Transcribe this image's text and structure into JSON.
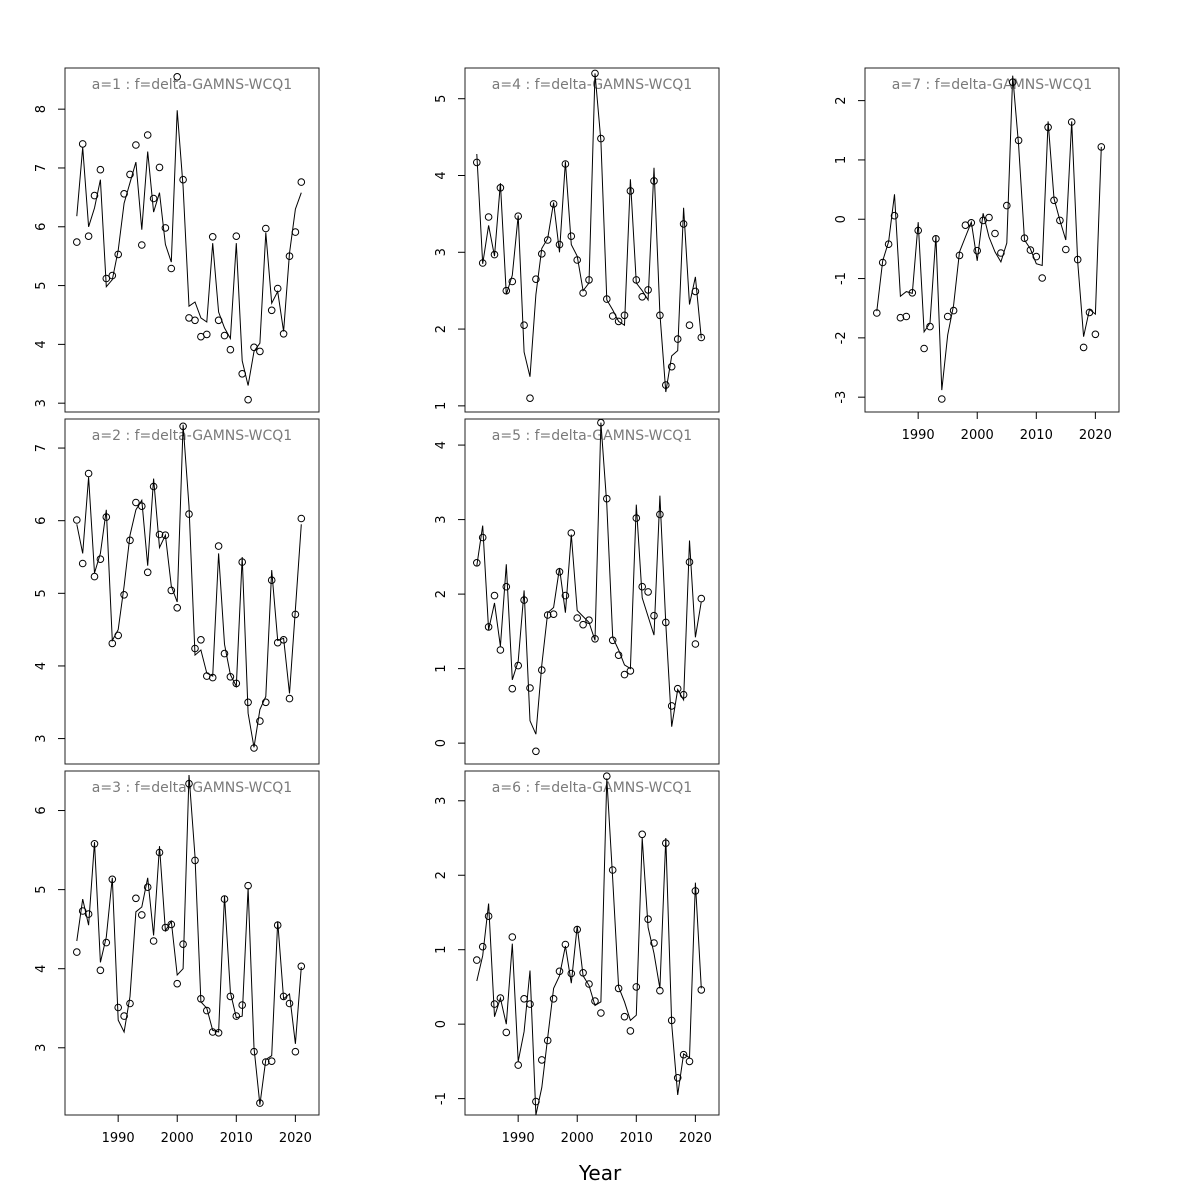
{
  "figure": {
    "xlabel": "Year"
  },
  "chart_data": [
    {
      "type": "line",
      "title": "a=1  :  f=delta-GAMNS-WCQ1",
      "xlim": [
        1981,
        2024
      ],
      "ylim": [
        2.85,
        8.7
      ],
      "yticks": [
        3,
        4,
        5,
        6,
        7,
        8
      ],
      "xticks": [],
      "x": [
        1983,
        1984,
        1985,
        1986,
        1987,
        1988,
        1989,
        1990,
        1991,
        1992,
        1993,
        1994,
        1995,
        1996,
        1997,
        1998,
        1999,
        2000,
        2001,
        2002,
        2003,
        2004,
        2005,
        2006,
        2007,
        2008,
        2009,
        2010,
        2011,
        2012,
        2013,
        2014,
        2015,
        2016,
        2017,
        2018,
        2019,
        2020,
        2021
      ],
      "series": [
        {
          "kind": "points",
          "values": [
            5.74,
            7.41,
            5.84,
            6.53,
            6.97,
            5.12,
            5.17,
            5.53,
            6.56,
            6.89,
            7.39,
            5.69,
            7.56,
            6.48,
            7.01,
            5.98,
            5.29,
            8.55,
            6.8,
            4.45,
            4.41,
            4.13,
            4.17,
            5.83,
            4.41,
            4.15,
            3.91,
            5.84,
            3.5,
            3.06,
            3.95,
            3.88,
            5.97,
            4.58,
            4.95,
            4.18,
            5.5,
            5.91,
            6.76
          ]
        },
        {
          "kind": "line",
          "values": [
            6.18,
            7.35,
            6.0,
            6.32,
            6.8,
            4.98,
            5.1,
            5.6,
            6.4,
            6.75,
            7.1,
            5.95,
            7.28,
            6.25,
            6.58,
            5.7,
            5.4,
            7.98,
            6.68,
            4.65,
            4.72,
            4.45,
            4.38,
            5.72,
            4.55,
            4.28,
            4.1,
            5.72,
            3.72,
            3.3,
            3.88,
            4.02,
            5.9,
            4.7,
            4.9,
            4.22,
            5.55,
            6.3,
            6.58
          ]
        }
      ]
    },
    {
      "type": "line",
      "title": "a=2  :  f=delta-GAMNS-WCQ1",
      "xlim": [
        1981,
        2024
      ],
      "ylim": [
        2.65,
        7.4
      ],
      "yticks": [
        3,
        4,
        5,
        6,
        7
      ],
      "xticks": [],
      "x": [
        1983,
        1984,
        1985,
        1986,
        1987,
        1988,
        1989,
        1990,
        1991,
        1992,
        1993,
        1994,
        1995,
        1996,
        1997,
        1998,
        1999,
        2000,
        2001,
        2002,
        2003,
        2004,
        2005,
        2006,
        2007,
        2008,
        2009,
        2010,
        2011,
        2012,
        2013,
        2014,
        2015,
        2016,
        2017,
        2018,
        2019,
        2020,
        2021
      ],
      "series": [
        {
          "kind": "points",
          "values": [
            6.01,
            5.41,
            6.65,
            5.23,
            5.47,
            6.05,
            4.31,
            4.42,
            4.98,
            5.73,
            6.25,
            6.2,
            5.29,
            6.47,
            5.81,
            5.8,
            5.04,
            4.8,
            7.3,
            6.09,
            4.24,
            4.36,
            3.86,
            3.84,
            5.65,
            4.17,
            3.85,
            3.76,
            5.43,
            3.5,
            2.87,
            3.24,
            3.5,
            5.18,
            4.32,
            4.36,
            3.55,
            4.71,
            6.03
          ]
        },
        {
          "kind": "line",
          "values": [
            5.95,
            5.55,
            6.6,
            5.28,
            5.55,
            6.15,
            4.35,
            4.5,
            5.1,
            5.8,
            6.15,
            6.28,
            5.38,
            6.58,
            5.63,
            5.8,
            5.1,
            4.88,
            7.32,
            6.2,
            4.15,
            4.22,
            3.9,
            3.86,
            5.55,
            4.3,
            3.88,
            3.72,
            5.5,
            3.35,
            2.88,
            3.4,
            3.58,
            5.32,
            4.35,
            4.38,
            3.62,
            4.78,
            5.95
          ]
        }
      ]
    },
    {
      "type": "line",
      "title": "a=3  :  f=delta-GAMNS-WCQ1",
      "xlim": [
        1981,
        2024
      ],
      "ylim": [
        2.15,
        6.5
      ],
      "yticks": [
        3,
        4,
        5,
        6
      ],
      "xticks": [
        1990,
        2000,
        2010,
        2020
      ],
      "x": [
        1983,
        1984,
        1985,
        1986,
        1987,
        1988,
        1989,
        1990,
        1991,
        1992,
        1993,
        1994,
        1995,
        1996,
        1997,
        1998,
        1999,
        2000,
        2001,
        2002,
        2003,
        2004,
        2005,
        2006,
        2007,
        2008,
        2009,
        2010,
        2011,
        2012,
        2013,
        2014,
        2015,
        2016,
        2017,
        2018,
        2019,
        2020,
        2021
      ],
      "series": [
        {
          "kind": "points",
          "values": [
            4.21,
            4.73,
            4.69,
            5.58,
            3.98,
            4.33,
            5.13,
            3.51,
            3.4,
            3.56,
            4.89,
            4.68,
            5.03,
            4.35,
            5.47,
            4.52,
            4.56,
            3.81,
            4.31,
            6.34,
            5.37,
            3.62,
            3.47,
            3.2,
            3.19,
            4.88,
            3.65,
            3.4,
            3.54,
            5.05,
            2.95,
            2.3,
            2.82,
            2.83,
            4.55,
            3.65,
            3.56,
            2.95,
            4.03
          ]
        },
        {
          "kind": "line",
          "values": [
            4.35,
            4.88,
            4.55,
            5.6,
            4.08,
            4.4,
            5.15,
            3.35,
            3.2,
            3.65,
            4.72,
            4.78,
            5.15,
            4.42,
            5.55,
            4.48,
            4.6,
            3.92,
            4.0,
            6.45,
            5.42,
            3.58,
            3.5,
            3.22,
            3.2,
            4.92,
            3.7,
            3.38,
            3.4,
            5.02,
            3.0,
            2.28,
            2.85,
            2.9,
            4.6,
            3.62,
            3.68,
            3.05,
            4.02
          ]
        }
      ]
    },
    {
      "type": "line",
      "title": "a=4  :  f=delta-GAMNS-WCQ1",
      "xlim": [
        1981,
        2024
      ],
      "ylim": [
        0.92,
        5.4
      ],
      "yticks": [
        1,
        2,
        3,
        4,
        5
      ],
      "xticks": [],
      "x": [
        1983,
        1984,
        1985,
        1986,
        1987,
        1988,
        1989,
        1990,
        1991,
        1992,
        1993,
        1994,
        1995,
        1996,
        1997,
        1998,
        1999,
        2000,
        2001,
        2002,
        2003,
        2004,
        2005,
        2006,
        2007,
        2008,
        2009,
        2010,
        2011,
        2012,
        2013,
        2014,
        2015,
        2016,
        2017,
        2018,
        2019,
        2020,
        2021
      ],
      "series": [
        {
          "kind": "points",
          "values": [
            4.17,
            2.86,
            3.46,
            2.97,
            3.84,
            2.5,
            2.62,
            3.47,
            2.05,
            1.1,
            2.65,
            2.98,
            3.16,
            3.63,
            3.1,
            4.15,
            3.21,
            2.9,
            2.47,
            2.64,
            5.33,
            4.48,
            2.39,
            2.17,
            2.1,
            2.18,
            3.8,
            2.64,
            2.42,
            2.51,
            3.93,
            2.18,
            1.27,
            1.51,
            1.87,
            3.37,
            2.05,
            2.49,
            1.89
          ]
        },
        {
          "kind": "line",
          "values": [
            4.28,
            2.85,
            3.35,
            2.95,
            3.9,
            2.45,
            2.7,
            3.48,
            1.7,
            1.38,
            2.45,
            3.05,
            3.18,
            3.65,
            3.0,
            4.18,
            3.1,
            2.95,
            2.5,
            2.6,
            5.33,
            4.45,
            2.38,
            2.25,
            2.1,
            2.05,
            3.95,
            2.6,
            2.5,
            2.38,
            4.1,
            2.2,
            1.18,
            1.65,
            1.72,
            3.58,
            2.32,
            2.68,
            1.88
          ]
        }
      ]
    },
    {
      "type": "line",
      "title": "a=5  :  f=delta-GAMNS-WCQ1",
      "xlim": [
        1981,
        2024
      ],
      "ylim": [
        -0.28,
        4.35
      ],
      "yticks": [
        0,
        1,
        2,
        3,
        4
      ],
      "xticks": [],
      "x": [
        1983,
        1984,
        1985,
        1986,
        1987,
        1988,
        1989,
        1990,
        1991,
        1992,
        1993,
        1994,
        1995,
        1996,
        1997,
        1998,
        1999,
        2000,
        2001,
        2002,
        2003,
        2004,
        2005,
        2006,
        2007,
        2008,
        2009,
        2010,
        2011,
        2012,
        2013,
        2014,
        2015,
        2016,
        2017,
        2018,
        2019,
        2020,
        2021
      ],
      "series": [
        {
          "kind": "points",
          "values": [
            2.42,
            2.76,
            1.56,
            1.98,
            1.25,
            2.1,
            0.73,
            1.04,
            1.92,
            0.74,
            -0.11,
            0.98,
            1.72,
            1.73,
            2.3,
            1.98,
            2.82,
            1.68,
            1.59,
            1.65,
            1.4,
            4.3,
            3.28,
            1.38,
            1.18,
            0.92,
            0.97,
            3.02,
            2.1,
            2.03,
            1.71,
            3.07,
            1.62,
            0.5,
            0.73,
            0.65,
            2.43,
            1.33,
            1.94
          ]
        },
        {
          "kind": "line",
          "values": [
            2.38,
            2.92,
            1.52,
            1.88,
            1.3,
            2.4,
            0.85,
            1.1,
            2.05,
            0.3,
            0.12,
            1.05,
            1.75,
            1.82,
            2.35,
            1.75,
            2.8,
            1.78,
            1.7,
            1.62,
            1.38,
            4.3,
            3.2,
            1.42,
            1.25,
            1.05,
            1.0,
            3.2,
            1.95,
            1.7,
            1.45,
            3.32,
            1.6,
            0.22,
            0.72,
            0.58,
            2.72,
            1.42,
            1.9
          ]
        }
      ]
    },
    {
      "type": "line",
      "title": "a=6  :  f=delta-GAMNS-WCQ1",
      "xlim": [
        1981,
        2024
      ],
      "ylim": [
        -1.22,
        3.4
      ],
      "yticks": [
        -1,
        0,
        1,
        2,
        3
      ],
      "xticks": [
        1990,
        2000,
        2010,
        2020
      ],
      "x": [
        1983,
        1984,
        1985,
        1986,
        1987,
        1988,
        1989,
        1990,
        1991,
        1992,
        1993,
        1994,
        1995,
        1996,
        1997,
        1998,
        1999,
        2000,
        2001,
        2002,
        2003,
        2004,
        2005,
        2006,
        2007,
        2008,
        2009,
        2010,
        2011,
        2012,
        2013,
        2014,
        2015,
        2016,
        2017,
        2018,
        2019,
        2020,
        2021
      ],
      "series": [
        {
          "kind": "points",
          "values": [
            0.86,
            1.04,
            1.45,
            0.27,
            0.35,
            -0.11,
            1.17,
            -0.55,
            0.34,
            0.27,
            -1.04,
            -0.48,
            -0.22,
            0.34,
            0.71,
            1.07,
            0.68,
            1.27,
            0.69,
            0.54,
            0.31,
            0.15,
            3.33,
            2.07,
            0.48,
            0.1,
            -0.09,
            0.5,
            2.55,
            1.41,
            1.09,
            0.45,
            2.43,
            0.05,
            -0.72,
            -0.41,
            -0.5,
            1.79,
            0.46
          ]
        },
        {
          "kind": "line",
          "values": [
            0.58,
            0.92,
            1.62,
            0.1,
            0.35,
            0.0,
            1.08,
            -0.5,
            -0.1,
            0.72,
            -1.22,
            -0.85,
            -0.18,
            0.48,
            0.65,
            1.05,
            0.55,
            1.32,
            0.65,
            0.52,
            0.25,
            0.3,
            3.3,
            1.95,
            0.5,
            0.3,
            0.05,
            0.12,
            2.5,
            1.3,
            0.95,
            0.48,
            2.5,
            0.0,
            -0.95,
            -0.4,
            -0.45,
            1.9,
            0.48
          ]
        }
      ]
    },
    {
      "type": "line",
      "title": "a=7  :  f=delta-GAMNS-WCQ1",
      "xlim": [
        1981,
        2024
      ],
      "ylim": [
        -3.25,
        2.55
      ],
      "yticks": [
        -3,
        -2,
        -1,
        0,
        1,
        2
      ],
      "xticks": [
        1990,
        2000,
        2010,
        2020
      ],
      "x": [
        1983,
        1984,
        1985,
        1986,
        1987,
        1988,
        1989,
        1990,
        1991,
        1992,
        1993,
        1994,
        1995,
        1996,
        1997,
        1998,
        1999,
        2000,
        2001,
        2002,
        2003,
        2004,
        2005,
        2006,
        2007,
        2008,
        2009,
        2010,
        2011,
        2012,
        2013,
        2014,
        2015,
        2016,
        2017,
        2018,
        2019,
        2020,
        2021
      ],
      "series": [
        {
          "kind": "points",
          "values": [
            -1.58,
            -0.73,
            -0.42,
            0.06,
            -1.66,
            -1.64,
            -1.24,
            -0.19,
            -2.18,
            -1.81,
            -0.33,
            -3.03,
            -1.64,
            -1.54,
            -0.61,
            -0.1,
            -0.06,
            -0.53,
            -0.02,
            0.03,
            -0.24,
            -0.57,
            0.23,
            2.31,
            1.33,
            -0.32,
            -0.52,
            -0.63,
            -0.99,
            1.55,
            0.32,
            -0.02,
            -0.51,
            1.64,
            -0.68,
            -2.16,
            -1.57,
            -1.94,
            1.22
          ]
        },
        {
          "kind": "line",
          "values": [
            -1.55,
            -0.7,
            -0.38,
            0.42,
            -1.3,
            -1.22,
            -1.25,
            -0.05,
            -1.9,
            -1.75,
            -0.28,
            -2.88,
            -1.95,
            -1.45,
            -0.55,
            -0.3,
            -0.05,
            -0.7,
            0.1,
            -0.3,
            -0.55,
            -0.72,
            -0.4,
            2.42,
            1.25,
            -0.35,
            -0.5,
            -0.75,
            -0.78,
            1.65,
            0.35,
            -0.02,
            -0.35,
            1.65,
            -0.72,
            -1.98,
            -1.52,
            -1.6,
            1.22
          ]
        }
      ]
    }
  ]
}
